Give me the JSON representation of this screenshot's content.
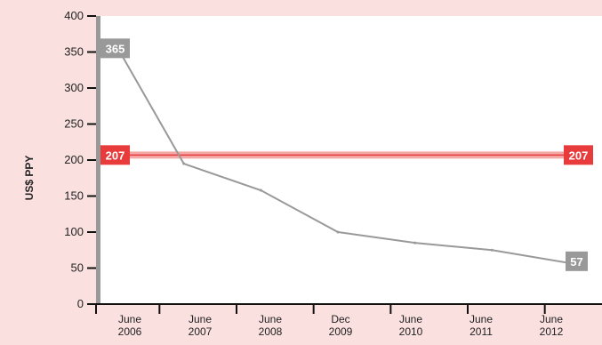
{
  "chart_data": {
    "type": "line",
    "ylabel": "US$ PPY",
    "ylim": [
      0,
      400
    ],
    "yticks": [
      0,
      50,
      100,
      150,
      200,
      250,
      300,
      350,
      400
    ],
    "categories": [
      [
        "June",
        "2006"
      ],
      [
        "June",
        "2007"
      ],
      [
        "June",
        "2008"
      ],
      [
        "Dec",
        "2009"
      ],
      [
        "June",
        "2010"
      ],
      [
        "June",
        "2011"
      ],
      [
        "June",
        "2012"
      ]
    ],
    "series": [
      {
        "values": [
          365,
          195,
          158,
          100,
          85,
          75,
          57
        ],
        "color": "#999999",
        "start_label": "365",
        "end_label": "57"
      },
      {
        "values": [
          207,
          207,
          207,
          207,
          207,
          207,
          207
        ],
        "color": "#e83c3c",
        "start_label": "207",
        "end_label": "207"
      }
    ],
    "grid": false,
    "legend": "none"
  },
  "colors": {
    "background": "#fbe0e0",
    "plot_area": "#ffffff",
    "axis": "#111111",
    "grey_series": "#999999",
    "red_series": "#e83c3c",
    "red_band": "#f4a9a9"
  }
}
